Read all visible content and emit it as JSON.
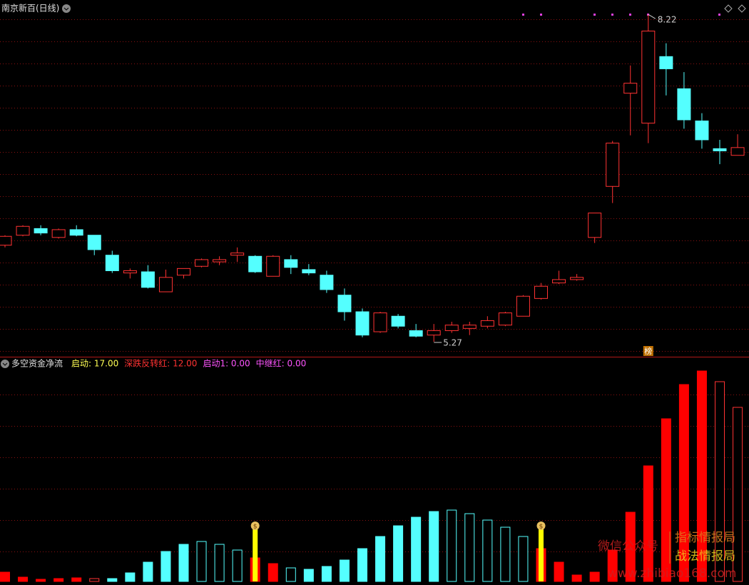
{
  "chart_data": [
    {
      "type": "candlestick",
      "title": "南京新百(日线)",
      "open": [
        6.14,
        6.23,
        6.29,
        6.21,
        6.28,
        6.23,
        6.05,
        5.89,
        5.9,
        5.72,
        5.87,
        5.95,
        5.99,
        6.05,
        6.04,
        5.86,
        6.01,
        5.92,
        5.87,
        5.69,
        5.54,
        5.36,
        5.5,
        5.37,
        5.33,
        5.37,
        5.39,
        5.41,
        5.42,
        5.5,
        5.66,
        5.8,
        5.83,
        6.21,
        6.67,
        7.51,
        7.24,
        7.84,
        7.55,
        7.26,
        7.01,
        6.95
      ],
      "high": [
        6.23,
        6.32,
        6.32,
        6.29,
        6.32,
        6.23,
        6.09,
        5.93,
        5.96,
        5.92,
        5.93,
        6.02,
        6.04,
        6.12,
        6.05,
        6.05,
        6.05,
        5.97,
        5.91,
        5.75,
        5.57,
        5.54,
        5.52,
        5.43,
        5.43,
        5.45,
        5.45,
        5.5,
        5.54,
        5.69,
        5.8,
        5.91,
        5.88,
        6.43,
        7.08,
        7.76,
        8.22,
        7.96,
        7.7,
        7.33,
        7.09,
        7.14
      ],
      "low": [
        6.12,
        6.22,
        6.23,
        6.2,
        6.22,
        6.05,
        5.89,
        5.84,
        5.75,
        5.72,
        5.84,
        5.94,
        5.96,
        5.99,
        5.89,
        5.86,
        5.88,
        5.87,
        5.71,
        5.46,
        5.31,
        5.35,
        5.39,
        5.31,
        5.27,
        5.35,
        5.33,
        5.39,
        5.41,
        5.5,
        5.65,
        5.79,
        5.82,
        6.16,
        6.52,
        7.13,
        7.06,
        7.49,
        7.19,
        7.01,
        6.87,
        6.95
      ],
      "close": [
        6.22,
        6.31,
        6.25,
        6.28,
        6.23,
        6.1,
        5.91,
        5.91,
        5.76,
        5.85,
        5.93,
        6.01,
        6.01,
        6.07,
        5.9,
        6.04,
        5.94,
        5.89,
        5.74,
        5.54,
        5.33,
        5.53,
        5.41,
        5.32,
        5.37,
        5.42,
        5.42,
        5.46,
        5.53,
        5.68,
        5.77,
        5.83,
        5.85,
        6.43,
        7.06,
        7.6,
        8.07,
        7.73,
        7.27,
        7.09,
        6.99,
        7.02
      ],
      "up_color": "#ff3232",
      "down_color": "#54ffff",
      "ylim": [
        5.135,
        8.35
      ],
      "grid": true,
      "badge": "榜"
    },
    {
      "type": "bar",
      "title": "多空资金净流",
      "legend": [
        {
          "text": "启动: 17.00",
          "color": "#ffff54"
        },
        {
          "text": "深跌反转红: 12.00",
          "color": "#ff3232"
        },
        {
          "text": "启动1: 0.00",
          "color": "#ff54ff"
        },
        {
          "text": "中继红: 0.00",
          "color": "#ff54ff"
        }
      ],
      "values": [
        13,
        6,
        3,
        4,
        5,
        4,
        4,
        12,
        27,
        42,
        52,
        56,
        52,
        44,
        33,
        25,
        19,
        17,
        21,
        30,
        46,
        63,
        78,
        90,
        98,
        100,
        95,
        86,
        76,
        63,
        46,
        27,
        9,
        13,
        44,
        97,
        162,
        228,
        276,
        295,
        280,
        244
      ],
      "colors": [
        "#ff0000",
        "#ff0000",
        "#ff0000",
        "#ff0000",
        "#ff0000",
        "#ff3232",
        "#54ffff",
        "#54ffff",
        "#54ffff",
        "#54ffff",
        "#54ffff",
        "#54ffff",
        "#54ffff",
        "#54ffff",
        "#ff0000",
        "#ff0000",
        "#54ffff",
        "#54ffff",
        "#54ffff",
        "#54ffff",
        "#54ffff",
        "#54ffff",
        "#54ffff",
        "#54ffff",
        "#54ffff",
        "#54ffff",
        "#54ffff",
        "#54ffff",
        "#54ffff",
        "#54ffff",
        "#ff0000",
        "#ff0000",
        "#ff0000",
        "#ff0000",
        "#ff0000",
        "#ff0000",
        "#ff0000",
        "#ff0000",
        "#ff0000",
        "#ff0000",
        "#ff3232",
        "#ff3232"
      ],
      "hollow": [
        false,
        false,
        false,
        false,
        false,
        true,
        false,
        false,
        false,
        false,
        false,
        true,
        true,
        true,
        false,
        false,
        true,
        false,
        false,
        false,
        false,
        false,
        false,
        false,
        false,
        true,
        true,
        true,
        true,
        true,
        false,
        false,
        false,
        false,
        false,
        false,
        false,
        false,
        false,
        false,
        true,
        true
      ],
      "signal_values": [
        null,
        null,
        null,
        null,
        null,
        null,
        null,
        null,
        null,
        null,
        null,
        null,
        null,
        null,
        73,
        null,
        null,
        null,
        null,
        null,
        null,
        null,
        null,
        null,
        null,
        null,
        null,
        null,
        null,
        null,
        73,
        null,
        null,
        null,
        null,
        null,
        null,
        null,
        null,
        null,
        null,
        null
      ],
      "signal_color": "#ffff00",
      "ylim": [
        0,
        300
      ],
      "grid": true
    }
  ],
  "watermark": [
    "微信公众号",
    "指标情报局",
    "战法情报局",
    "www.zhibiao168.com"
  ]
}
